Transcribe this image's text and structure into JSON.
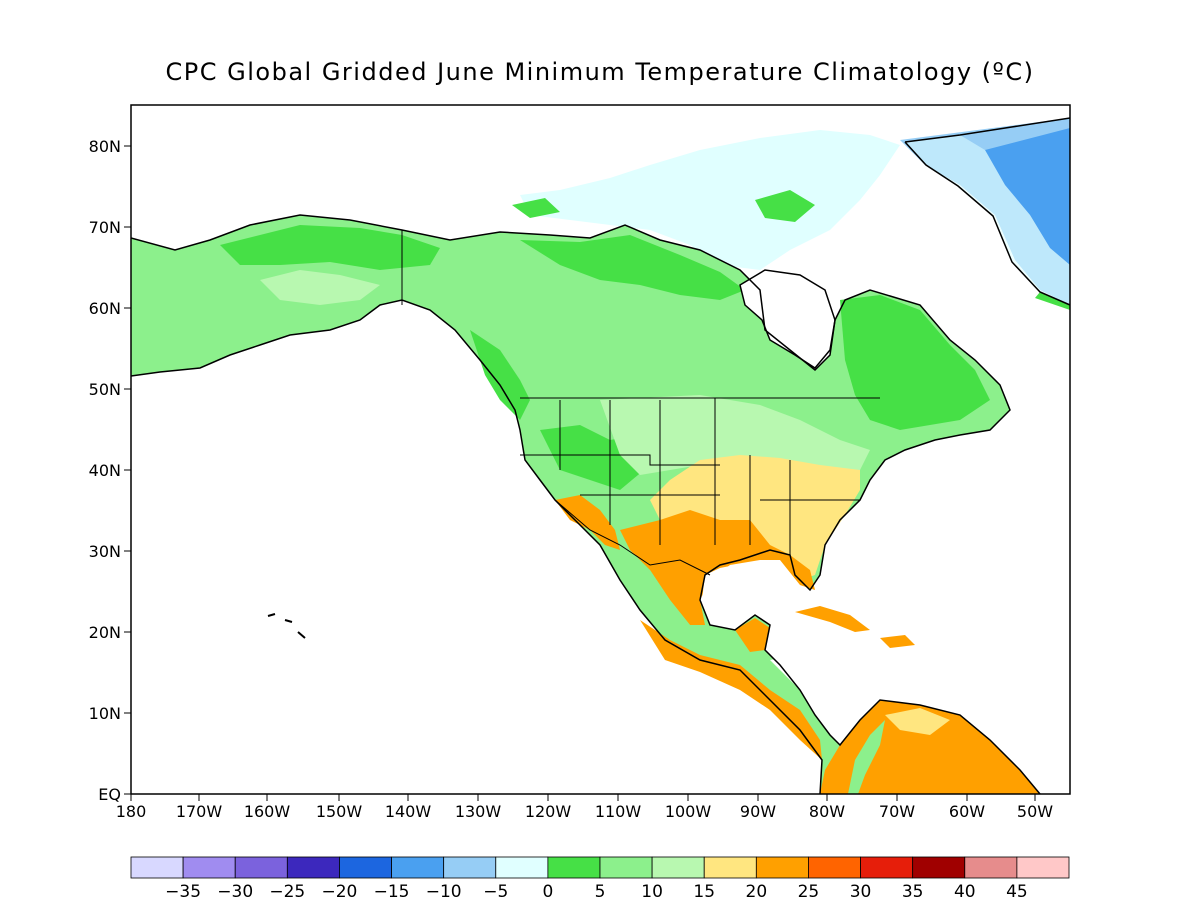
{
  "title": "CPC Global Gridded June Minimum Temperature Climatology (ºC)",
  "map": {
    "lat_labels": [
      "80N",
      "70N",
      "60N",
      "50N",
      "40N",
      "30N",
      "20N",
      "10N",
      "EQ"
    ],
    "lon_labels": [
      "180",
      "170W",
      "160W",
      "150W",
      "140W",
      "130W",
      "120W",
      "110W",
      "100W",
      "90W",
      "80W",
      "70W",
      "60W",
      "50W"
    ]
  },
  "colorbar": {
    "colors": [
      "#d8d8ff",
      "#a08cf0",
      "#7b62dd",
      "#3c28bd",
      "#1c66e0",
      "#4aa0f0",
      "#96cdf5",
      "#e0ffff",
      "#46e046",
      "#8cf08c",
      "#b8f8b0",
      "#ffe680",
      "#ffa000",
      "#ff6400",
      "#e61e0a",
      "#a00000",
      "#e68c8c",
      "#ffc8c8"
    ],
    "labels": [
      "-35",
      "-30",
      "-25",
      "-20",
      "-15",
      "-10",
      "-5",
      "0",
      "5",
      "10",
      "15",
      "20",
      "25",
      "30",
      "35",
      "40",
      "45"
    ]
  }
}
